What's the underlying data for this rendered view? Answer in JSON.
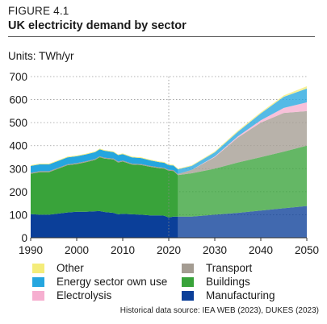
{
  "figure_label": "FIGURE 4.1",
  "source_note": "Historical data source: IEA WEB (2023), DUKES (2023)",
  "chart_data": {
    "type": "area",
    "title": "UK electricity demand by sector",
    "units_label": "Units: TWh/yr",
    "xlabel": "",
    "ylabel": "",
    "xlim": [
      1990,
      2050
    ],
    "ylim": [
      0,
      700
    ],
    "x_ticks": [
      1990,
      2000,
      2010,
      2020,
      2030,
      2040,
      2050
    ],
    "y_ticks": [
      0,
      100,
      200,
      300,
      400,
      500,
      600,
      700
    ],
    "grid": "horizontal dotted",
    "historical_end_year": 2022,
    "x": [
      1990,
      1992,
      1994,
      1996,
      1998,
      2000,
      2002,
      2004,
      2005,
      2006,
      2008,
      2009,
      2010,
      2012,
      2014,
      2016,
      2018,
      2019,
      2020,
      2021,
      2022,
      2025,
      2030,
      2035,
      2040,
      2045,
      2050
    ],
    "series": [
      {
        "name": "Manufacturing",
        "color": "#0b3f99",
        "values": [
          103,
          100,
          100,
          105,
          110,
          113,
          113,
          115,
          116,
          112,
          108,
          102,
          104,
          102,
          100,
          97,
          97,
          96,
          88,
          92,
          92,
          92,
          100,
          108,
          118,
          128,
          138
        ]
      },
      {
        "name": "Buildings",
        "color": "#39a33a",
        "values": [
          175,
          185,
          185,
          195,
          205,
          207,
          215,
          223,
          234,
          232,
          232,
          225,
          227,
          216,
          216,
          211,
          205,
          204,
          203,
          198,
          180,
          188,
          200,
          219,
          232,
          246,
          262
        ]
      },
      {
        "name": "Transport",
        "color": "#a49c92",
        "values": [
          4,
          4,
          4,
          4,
          4,
          4,
          4,
          4,
          4,
          4,
          4,
          4,
          4,
          4,
          4,
          4,
          4,
          4,
          4,
          4,
          5,
          15,
          50,
          108,
          150,
          168,
          150
        ]
      },
      {
        "name": "Electrolysis",
        "color": "#f6afd0",
        "values": [
          0,
          0,
          0,
          0,
          0,
          0,
          0,
          0,
          0,
          0,
          0,
          0,
          0,
          0,
          0,
          0,
          0,
          0,
          0,
          0,
          0,
          0,
          3,
          5,
          10,
          22,
          38
        ]
      },
      {
        "name": "Energy sector own use",
        "color": "#25a6df",
        "values": [
          30,
          30,
          30,
          30,
          30,
          30,
          30,
          30,
          30,
          30,
          28,
          28,
          28,
          27,
          26,
          24,
          22,
          22,
          20,
          20,
          20,
          17,
          18,
          20,
          30,
          48,
          60
        ]
      },
      {
        "name": "Other",
        "color": "#f4ec7a",
        "values": [
          3,
          3,
          3,
          3,
          3,
          3,
          3,
          3,
          3,
          3,
          3,
          3,
          3,
          3,
          3,
          3,
          3,
          3,
          3,
          3,
          3,
          3,
          4,
          5,
          5,
          6,
          10
        ]
      }
    ]
  },
  "legend": [
    {
      "label": "Other",
      "color": "#f4ec7a"
    },
    {
      "label": "Energy sector own use",
      "color": "#25a6df"
    },
    {
      "label": "Electrolysis",
      "color": "#f6afd0"
    },
    {
      "label": "Transport",
      "color": "#a49c92"
    },
    {
      "label": "Buildings",
      "color": "#39a33a"
    },
    {
      "label": "Manufacturing",
      "color": "#0b3f99"
    }
  ]
}
